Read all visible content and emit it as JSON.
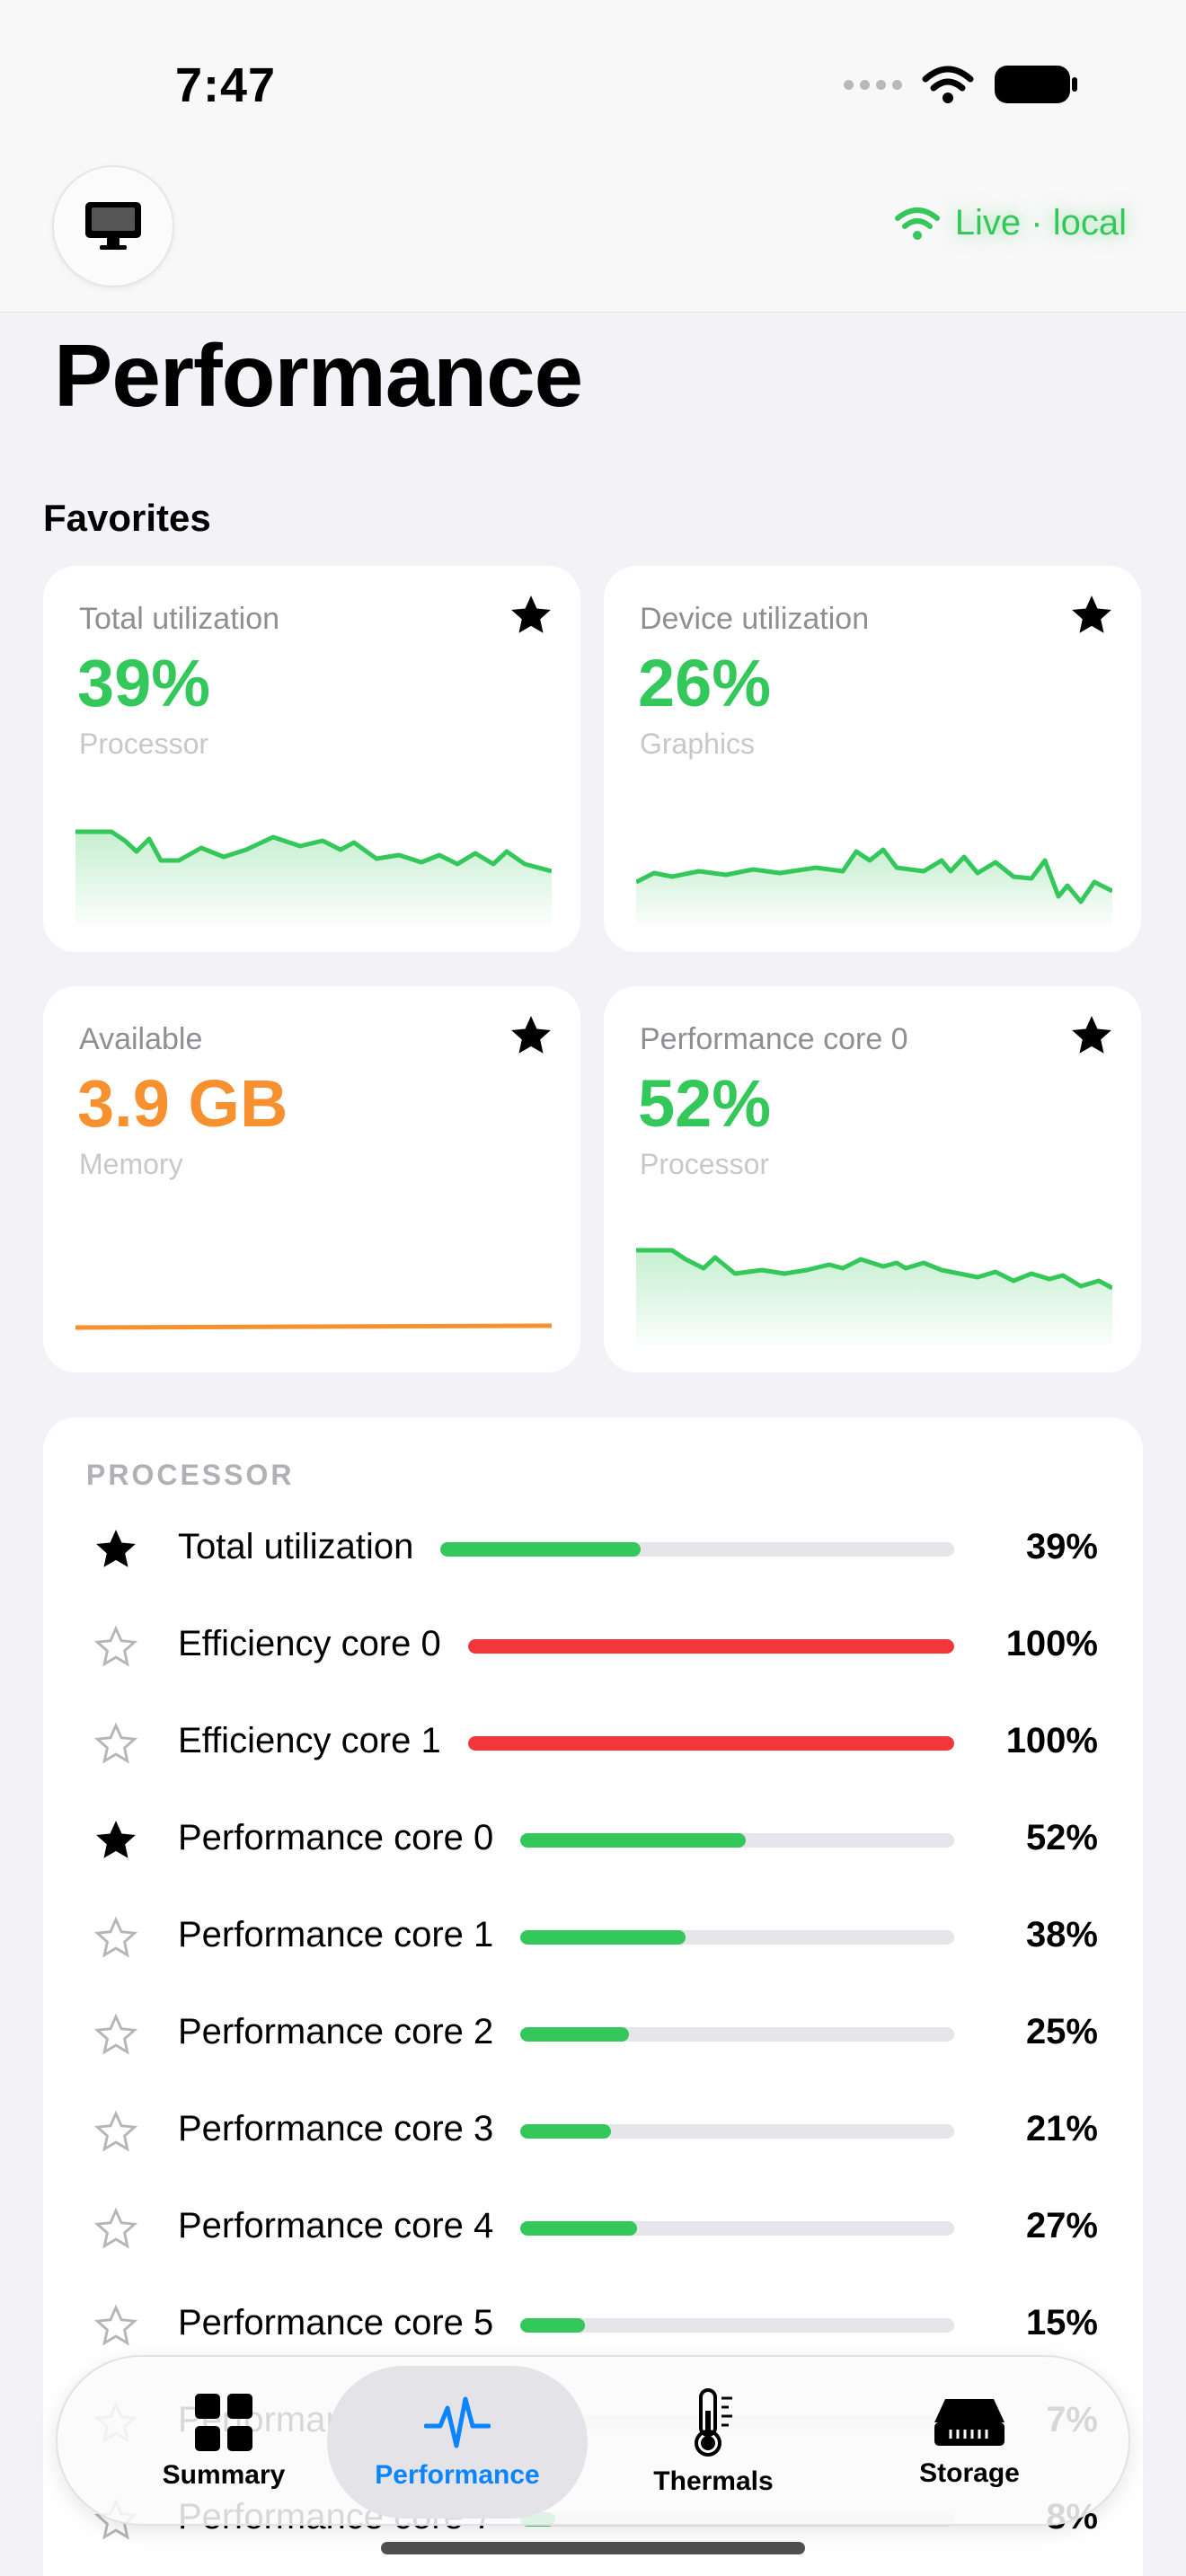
{
  "status_bar": {
    "time": "7:47"
  },
  "header": {
    "live_label": "Live · local"
  },
  "page": {
    "title": "Performance",
    "favorites_title": "Favorites"
  },
  "favorites": [
    {
      "label": "Total utilization",
      "value": "39%",
      "sub": "Processor",
      "color": "#34c759"
    },
    {
      "label": "Device utilization",
      "value": "26%",
      "sub": "Graphics",
      "color": "#34c759"
    },
    {
      "label": "Available",
      "value": "3.9 GB",
      "sub": "Memory",
      "color": "#f7902e"
    },
    {
      "label": "Performance core 0",
      "value": "52%",
      "sub": "Processor",
      "color": "#34c759"
    }
  ],
  "processor": {
    "header": "PROCESSOR",
    "rows": [
      {
        "name": "Total utilization",
        "pct": "39%",
        "value": 0.39,
        "favorite": true,
        "color": "#34c759"
      },
      {
        "name": "Efficiency core 0",
        "pct": "100%",
        "value": 1.0,
        "favorite": false,
        "color": "#f2363a"
      },
      {
        "name": "Efficiency core 1",
        "pct": "100%",
        "value": 1.0,
        "favorite": false,
        "color": "#f2363a"
      },
      {
        "name": "Performance core 0",
        "pct": "52%",
        "value": 0.52,
        "favorite": true,
        "color": "#34c759"
      },
      {
        "name": "Performance core 1",
        "pct": "38%",
        "value": 0.38,
        "favorite": false,
        "color": "#34c759"
      },
      {
        "name": "Performance core 2",
        "pct": "25%",
        "value": 0.25,
        "favorite": false,
        "color": "#34c759"
      },
      {
        "name": "Performance core 3",
        "pct": "21%",
        "value": 0.21,
        "favorite": false,
        "color": "#34c759"
      },
      {
        "name": "Performance core 4",
        "pct": "27%",
        "value": 0.27,
        "favorite": false,
        "color": "#34c759"
      },
      {
        "name": "Performance core 5",
        "pct": "15%",
        "value": 0.15,
        "favorite": false,
        "color": "#34c759"
      },
      {
        "name": "Performance core 6",
        "pct": "7%",
        "value": 0.07,
        "favorite": false,
        "color": "#34c759"
      },
      {
        "name": "Performance core 7",
        "pct": "8%",
        "value": 0.08,
        "favorite": false,
        "color": "#34c759"
      }
    ]
  },
  "tabs": [
    {
      "label": "Summary",
      "icon": "grid-icon",
      "active": false
    },
    {
      "label": "Performance",
      "icon": "waveform-icon",
      "active": true
    },
    {
      "label": "Thermals",
      "icon": "thermometer-icon",
      "active": false
    },
    {
      "label": "Storage",
      "icon": "drive-icon",
      "active": false
    }
  ]
}
